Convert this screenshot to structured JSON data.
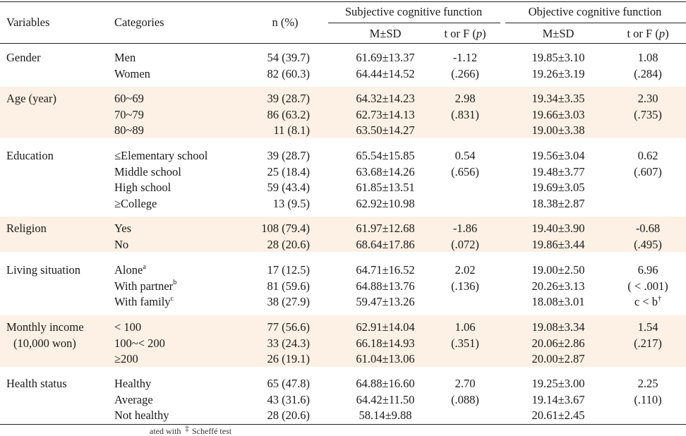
{
  "headers": {
    "variables": "Variables",
    "categories": "Categories",
    "n_pct": "n (%)",
    "subjective_group": "Subjective cognitive function",
    "objective_group": "Objective cognitive function",
    "msd_1": "M±SD",
    "tf_1_prefix": "t or F (",
    "tf_1_p": "p",
    "tf_1_suffix": ")",
    "msd_2": "M±SD",
    "tf_2_prefix": "t or F (",
    "tf_2_p": "p",
    "tf_2_suffix": ")"
  },
  "groups": [
    {
      "variable": "Gender",
      "variable_line2": "",
      "stat_subj": "-1.12",
      "p_subj": "(.266)",
      "stat_obj": "1.08",
      "p_obj": "(.284)",
      "posthoc_obj": "",
      "posthoc_obj_sup": "",
      "rows": [
        {
          "category": "Men",
          "category_sup": "",
          "n": "54 (39.7)",
          "subj": "61.69±13.37",
          "obj": "19.85±3.10"
        },
        {
          "category": "Women",
          "category_sup": "",
          "n": "82 (60.3)",
          "subj": "64.44±14.52",
          "obj": "19.26±3.19"
        }
      ]
    },
    {
      "variable": "Age (year)",
      "variable_line2": "",
      "stat_subj": "2.98",
      "p_subj": "(.831)",
      "stat_obj": "2.30",
      "p_obj": "(.735)",
      "posthoc_obj": "",
      "posthoc_obj_sup": "",
      "rows": [
        {
          "category": "60~69",
          "category_sup": "",
          "n": "39 (28.7)",
          "subj": "64.32±14.23",
          "obj": "19.34±3.35"
        },
        {
          "category": "70~79",
          "category_sup": "",
          "n": "86 (63.2)",
          "subj": "62.73±14.13",
          "obj": "19.66±3.03"
        },
        {
          "category": "80~89",
          "category_sup": "",
          "n": "11 (8.1)",
          "subj": "63.50±14.27",
          "obj": "19.00±3.38"
        }
      ]
    },
    {
      "variable": "Education",
      "variable_line2": "",
      "stat_subj": "0.54",
      "p_subj": "(.656)",
      "stat_obj": "0.62",
      "p_obj": "(.607)",
      "posthoc_obj": "",
      "posthoc_obj_sup": "",
      "rows": [
        {
          "category": "≤Elementary school",
          "category_sup": "",
          "n": "39 (28.7)",
          "subj": "65.54±15.85",
          "obj": "19.56±3.04"
        },
        {
          "category": "Middle school",
          "category_sup": "",
          "n": "25 (18.4)",
          "subj": "63.68±14.26",
          "obj": "19.48±3.77"
        },
        {
          "category": "High school",
          "category_sup": "",
          "n": "59 (43.4)",
          "subj": "61.85±13.51",
          "obj": "19.69±3.05"
        },
        {
          "category": "≥College",
          "category_sup": "",
          "n": "13 (9.5)",
          "subj": "62.92±10.98",
          "obj": "18.38±2.87"
        }
      ]
    },
    {
      "variable": "Religion",
      "variable_line2": "",
      "stat_subj": "-1.86",
      "p_subj": "(.072)",
      "stat_obj": "-0.68",
      "p_obj": "(.495)",
      "posthoc_obj": "",
      "posthoc_obj_sup": "",
      "rows": [
        {
          "category": "Yes",
          "category_sup": "",
          "n": "108 (79.4)",
          "subj": "61.97±12.68",
          "obj": "19.40±3.90"
        },
        {
          "category": "No",
          "category_sup": "",
          "n": "28 (20.6)",
          "subj": "68.64±17.86",
          "obj": "19.86±3.44"
        }
      ]
    },
    {
      "variable": "Living situation",
      "variable_line2": "",
      "stat_subj": "2.02",
      "p_subj": "(.136)",
      "stat_obj": "6.96",
      "p_obj": "( < .001)",
      "posthoc_obj": "c < b",
      "posthoc_obj_sup": "†",
      "rows": [
        {
          "category": "Alone",
          "category_sup": "a",
          "n": "17 (12.5)",
          "subj": "64.71±16.52",
          "obj": "19.00±2.50"
        },
        {
          "category": "With partner",
          "category_sup": "b",
          "n": "81 (59.6)",
          "subj": "64.88±13.76",
          "obj": "20.26±3.13"
        },
        {
          "category": "With family",
          "category_sup": "c",
          "n": "38 (27.9)",
          "subj": "59.47±13.26",
          "obj": "18.08±3.01"
        }
      ]
    },
    {
      "variable": "Monthly income",
      "variable_line2": "(10,000 won)",
      "stat_subj": "1.06",
      "p_subj": "(.351)",
      "stat_obj": "1.54",
      "p_obj": "(.217)",
      "posthoc_obj": "",
      "posthoc_obj_sup": "",
      "rows": [
        {
          "category": "< 100",
          "category_sup": "",
          "n": "77 (56.6)",
          "subj": "62.91±14.04",
          "obj": "19.08±3.34"
        },
        {
          "category": "100~< 200",
          "category_sup": "",
          "n": "33 (24.3)",
          "subj": "66.18±14.93",
          "obj": "20.06±2.86"
        },
        {
          "category": "≥200",
          "category_sup": "",
          "n": "26 (19.1)",
          "subj": "61.04±13.06",
          "obj": "20.00±2.87"
        }
      ]
    },
    {
      "variable": "Health status",
      "variable_line2": "",
      "stat_subj": "2.70",
      "p_subj": "(.088)",
      "stat_obj": "2.25",
      "p_obj": "(.110)",
      "posthoc_obj": "",
      "posthoc_obj_sup": "",
      "rows": [
        {
          "category": "Healthy",
          "category_sup": "",
          "n": "65 (47.8)",
          "subj": "64.88±16.60",
          "obj": "19.25±3.00"
        },
        {
          "category": "Average",
          "category_sup": "",
          "n": "43 (31.6)",
          "subj": "64.42±11.50",
          "obj": "19.14±3.67"
        },
        {
          "category": "Not healthy",
          "category_sup": "",
          "n": "28 (20.6)",
          "subj": "58.14±9.88",
          "obj": "20.61±2.45"
        }
      ]
    }
  ],
  "footnote_fragments": [
    "ated with",
    "‡",
    "Scheffé test"
  ]
}
